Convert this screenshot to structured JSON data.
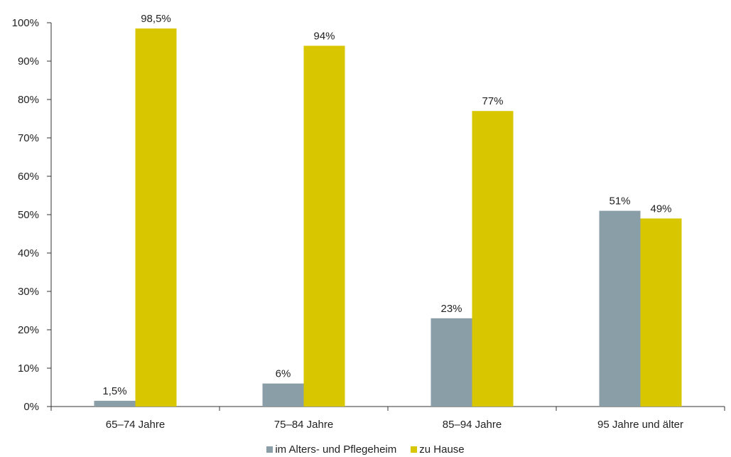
{
  "chart_data": {
    "type": "bar",
    "categories": [
      "65–74 Jahre",
      "75–84 Jahre",
      "85–94 Jahre",
      "95 Jahre und älter"
    ],
    "series": [
      {
        "name": "im Alters- und Pflegeheim",
        "values": [
          1.5,
          6,
          23,
          51
        ],
        "labels": [
          "1,5%",
          "6%",
          "23%",
          "51%"
        ],
        "color": "#8a9ea7"
      },
      {
        "name": "zu Hause",
        "values": [
          98.5,
          94,
          77,
          49
        ],
        "labels": [
          "98,5%",
          "94%",
          "77%",
          "49%"
        ],
        "color": "#d8c600"
      }
    ],
    "ylim": [
      0,
      100
    ],
    "yticks": [
      "0%",
      "10%",
      "20%",
      "30%",
      "40%",
      "50%",
      "60%",
      "70%",
      "80%",
      "90%",
      "100%"
    ],
    "legend_position": "bottom-center",
    "grid": false
  }
}
